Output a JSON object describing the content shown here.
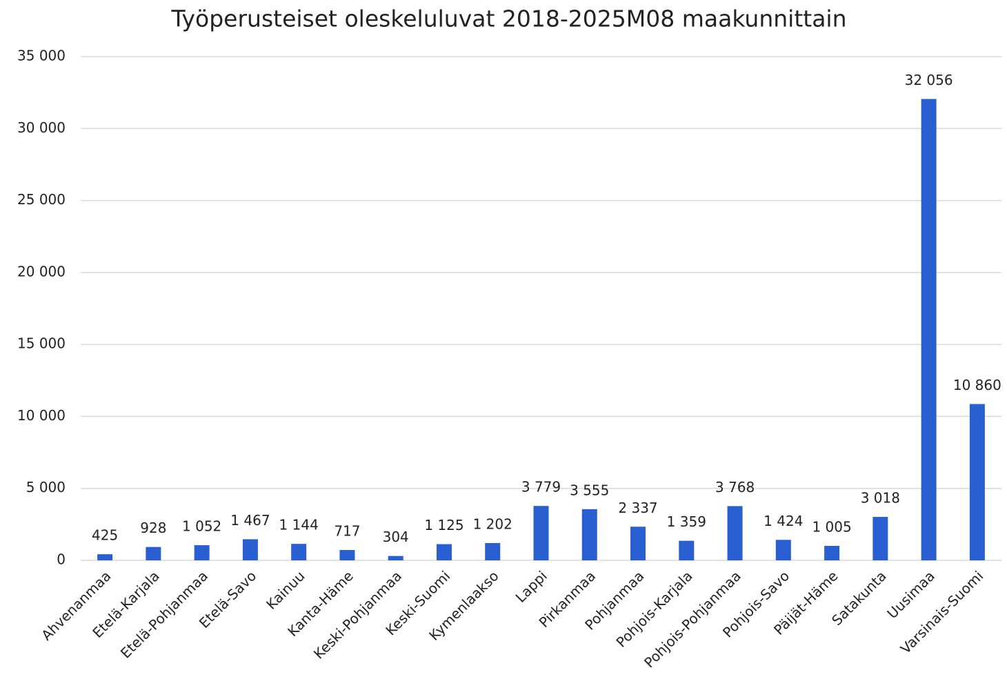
{
  "chart_data": {
    "type": "bar",
    "title": "Työperusteiset oleskeluluvat 2018-2025M08 maakunnittain",
    "categories": [
      "Ahvenanmaa",
      "Etelä-Karjala",
      "Etelä-Pohjanmaa",
      "Etelä-Savo",
      "Kainuu",
      "Kanta-Häme",
      "Keski-Pohjanmaa",
      "Keski-Suomi",
      "Kymenlaakso",
      "Lappi",
      "Pirkanmaa",
      "Pohjanmaa",
      "Pohjois-Karjala",
      "Pohjois-Pohjanmaa",
      "Pohjois-Savo",
      "Päijät-Häme",
      "Satakunta",
      "Uusimaa",
      "Varsinais-Suomi"
    ],
    "values": [
      425,
      928,
      1052,
      1467,
      1144,
      717,
      304,
      1125,
      1202,
      3779,
      3555,
      2337,
      1359,
      3768,
      1424,
      1005,
      3018,
      32056,
      10860
    ],
    "value_labels": [
      "425",
      "928",
      "1 052",
      "1 467",
      "1 144",
      "717",
      "304",
      "1 125",
      "1 202",
      "3 779",
      "3 555",
      "2 337",
      "1 359",
      "3 768",
      "1 424",
      "1 005",
      "3 018",
      "32 056",
      "10 860"
    ],
    "color": "#2a5fd2",
    "ylim": [
      0,
      35000
    ],
    "yticks": [
      0,
      {
        "value": 5000,
        "label": "5 000"
      },
      {
        "value": 10000,
        "label": "10 000"
      },
      {
        "value": 15000,
        "label": "15 000"
      },
      {
        "value": 20000,
        "label": "20 000"
      },
      {
        "value": 25000,
        "label": "25 000"
      },
      {
        "value": 30000,
        "label": "30 000"
      },
      {
        "value": 35000,
        "label": "35 000"
      }
    ],
    "grid": true
  }
}
